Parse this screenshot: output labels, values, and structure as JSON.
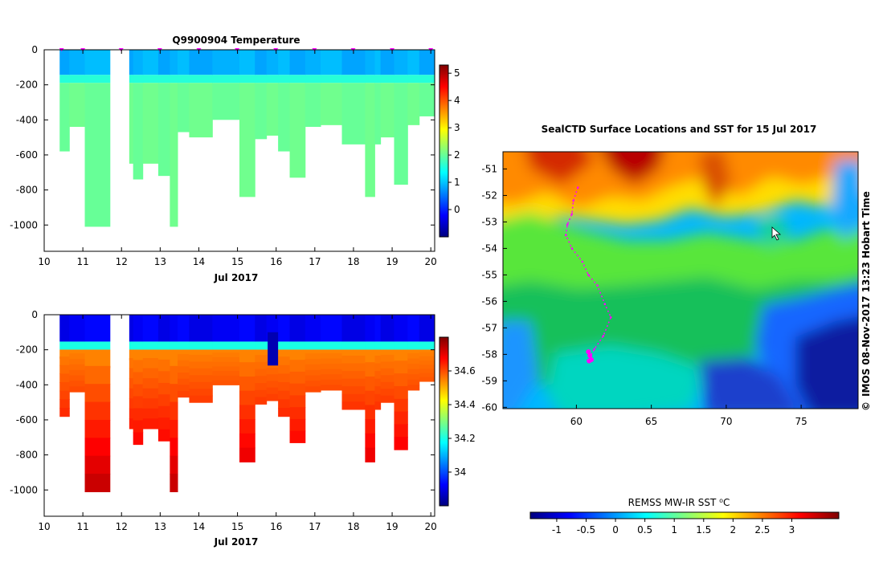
{
  "colors": {
    "jet_scale": [
      "#00007f",
      "#0000ff",
      "#007fff",
      "#00ffff",
      "#7fff7f",
      "#ffff00",
      "#ff7f00",
      "#ff0000",
      "#7f0000"
    ],
    "marker": "#ff00ff",
    "missing": "#ffffff"
  },
  "chart_data": [
    {
      "type": "heatmap",
      "title": "Q9900904  Temperature",
      "xlabel": "Jul 2017",
      "ylabel": "",
      "x_ticks": [
        "10",
        "11",
        "12",
        "13",
        "14",
        "15",
        "16",
        "17",
        "18",
        "19",
        "20"
      ],
      "y_ticks": [
        "0",
        "-200",
        "-400",
        "-600",
        "-800",
        "-1000"
      ],
      "xlim": [
        10,
        20.1
      ],
      "ylim": [
        -1150,
        0
      ],
      "colorbar": {
        "ticks": [
          "0",
          "1",
          "2",
          "3",
          "4",
          "5"
        ],
        "range": [
          -1,
          5.3
        ]
      },
      "surface_value": 0.8,
      "deep_value": 2.0,
      "thermocline_depth": -180,
      "profile_markers": [
        10.45,
        11.0,
        11.99,
        12.99,
        14.0,
        14.99,
        15.99,
        16.99,
        17.99,
        19.0,
        20.0
      ],
      "gaps": [
        [
          11.7,
          12.2
        ]
      ],
      "profile_bottoms": [
        [
          10.4,
          10.65,
          -580
        ],
        [
          10.65,
          11.05,
          -440
        ],
        [
          11.05,
          11.7,
          -1010
        ],
        [
          12.2,
          12.3,
          -650
        ],
        [
          12.3,
          12.55,
          -740
        ],
        [
          12.55,
          12.95,
          -650
        ],
        [
          12.95,
          13.25,
          -720
        ],
        [
          13.25,
          13.45,
          -1010
        ],
        [
          13.45,
          13.75,
          -470
        ],
        [
          13.75,
          14.35,
          -500
        ],
        [
          14.35,
          15.05,
          -400
        ],
        [
          15.05,
          15.45,
          -840
        ],
        [
          15.45,
          15.75,
          -510
        ],
        [
          15.75,
          16.05,
          -490
        ],
        [
          16.05,
          16.35,
          -580
        ],
        [
          16.35,
          16.75,
          -730
        ],
        [
          16.75,
          17.15,
          -440
        ],
        [
          17.15,
          17.7,
          -430
        ],
        [
          17.7,
          18.3,
          -540
        ],
        [
          18.3,
          18.55,
          -840
        ],
        [
          18.55,
          18.7,
          -540
        ],
        [
          18.7,
          19.05,
          -500
        ],
        [
          19.05,
          19.4,
          -770
        ],
        [
          19.4,
          19.7,
          -430
        ],
        [
          19.7,
          20.1,
          -380
        ]
      ]
    },
    {
      "type": "heatmap",
      "title": "",
      "xlabel": "Jul 2017",
      "ylabel": "",
      "x_ticks": [
        "10",
        "11",
        "12",
        "13",
        "14",
        "15",
        "16",
        "17",
        "18",
        "19",
        "20"
      ],
      "y_ticks": [
        "0",
        "-200",
        "-400",
        "-600",
        "-800",
        "-1000"
      ],
      "xlim": [
        10,
        20.1
      ],
      "ylim": [
        -1150,
        0
      ],
      "colorbar": {
        "ticks": [
          "34",
          "34.2",
          "34.4",
          "34.6"
        ],
        "range": [
          33.8,
          34.8
        ]
      },
      "surface_value": 33.9,
      "deep_value_top": 34.5,
      "deep_value_bottom": 34.75,
      "halocline_depth": -190,
      "anomaly": {
        "x": [
          15.78,
          16.05
        ],
        "depth": [
          -100,
          -290
        ],
        "value": 33.85
      },
      "gaps": [
        [
          11.7,
          12.2
        ]
      ],
      "profile_bottoms_ref": 0
    },
    {
      "type": "heatmap",
      "title": "SealCTD Surface Locations and SST for 15 Jul 2017",
      "xlabel": "",
      "ylabel": "",
      "x_ticks": [
        "60",
        "65",
        "70",
        "75"
      ],
      "y_ticks": [
        "-51",
        "-52",
        "-53",
        "-54",
        "-55",
        "-56",
        "-57",
        "-58",
        "-59",
        "-60"
      ],
      "xlim": [
        55.1,
        78.8
      ],
      "ylim": [
        -60.05,
        -50.35
      ],
      "colorbar": {
        "label": "REMSS MW-IR SST ⁰C",
        "ticks": [
          "-1",
          "-0.5",
          "0",
          "0.5",
          "1",
          "1.5",
          "2",
          "2.5",
          "3"
        ],
        "range": [
          -1.45,
          3.8
        ]
      },
      "seal_track": [
        [
          60.1,
          -51.7
        ],
        [
          59.8,
          -52.2
        ],
        [
          59.7,
          -52.7
        ],
        [
          59.4,
          -53.1
        ],
        [
          59.3,
          -53.5
        ],
        [
          59.7,
          -54.0
        ],
        [
          60.4,
          -54.5
        ],
        [
          60.8,
          -55.0
        ],
        [
          61.4,
          -55.4
        ],
        [
          61.9,
          -56.1
        ],
        [
          62.3,
          -56.6
        ],
        [
          61.8,
          -57.3
        ],
        [
          61.2,
          -57.8
        ],
        [
          60.9,
          -58.1
        ]
      ],
      "seal_cluster": [
        [
          60.8,
          -57.9
        ],
        [
          60.9,
          -58.05
        ],
        [
          61.0,
          -58.2
        ],
        [
          60.85,
          -58.25
        ]
      ],
      "cursor_location": [
        73.5,
        -53.1
      ]
    }
  ],
  "credit": "IMOS 08-Nov-2017 13:23 Hobart Time",
  "copyright_symbol": "©"
}
